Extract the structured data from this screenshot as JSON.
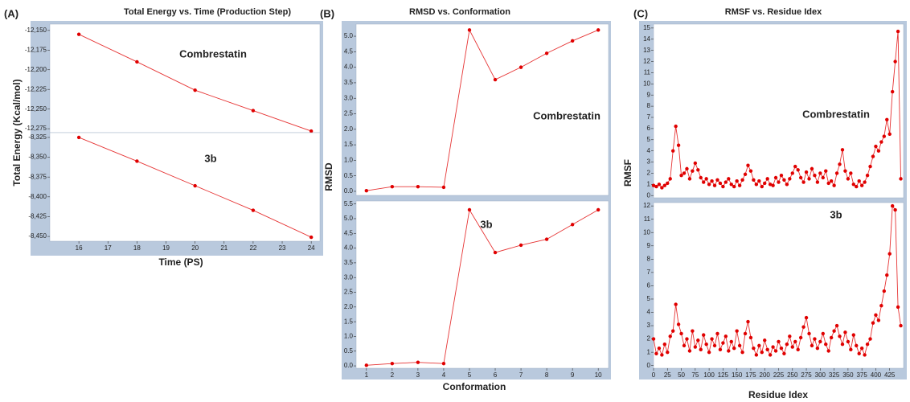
{
  "chart_data": [
    {
      "type": "line",
      "panel": "(A)",
      "title": "Total Energy vs. Time (Production Step)",
      "y_label": "Total Energy (Kcal/mol)",
      "annotation": "Combrestatin",
      "color": "#e00000",
      "x": [
        16,
        18,
        20,
        22,
        24
      ],
      "values": [
        -12155,
        -12190,
        -12226,
        -12252,
        -12278
      ],
      "xlim": [
        15,
        24.3
      ],
      "ylim": [
        -12280,
        -12142
      ],
      "yticks": [
        {
          "value": -12150,
          "label": "-12,150"
        },
        {
          "value": -12175,
          "label": "-12,175"
        },
        {
          "value": -12200,
          "label": "-12,200"
        },
        {
          "value": -12225,
          "label": "-12,225"
        },
        {
          "value": -12250,
          "label": "-12,250"
        },
        {
          "value": -12275,
          "label": "-12,275"
        }
      ]
    },
    {
      "type": "line",
      "x_label": "Time (PS)",
      "annotation": "3b",
      "color": "#e00000",
      "x": [
        16,
        18,
        20,
        22,
        24
      ],
      "values": [
        -8325,
        -8355,
        -8386,
        -8417,
        -8451
      ],
      "xlim": [
        15,
        24.3
      ],
      "ylim": [
        -8456,
        -8319
      ],
      "xticks": [
        16,
        17,
        18,
        19,
        20,
        21,
        22,
        23,
        24
      ],
      "yticks": [
        {
          "value": -8325,
          "label": "-8,325"
        },
        {
          "value": -8350,
          "label": "-8,350"
        },
        {
          "value": -8375,
          "label": "-8,375"
        },
        {
          "value": -8400,
          "label": "-8,400"
        },
        {
          "value": -8425,
          "label": "-8,425"
        },
        {
          "value": -8450,
          "label": "-8,450"
        }
      ]
    },
    {
      "type": "line",
      "panel": "(B)",
      "title": "RMSD vs. Conformation",
      "y_label": "RMSD",
      "annotation": "Combrestatin",
      "color": "#e00000",
      "x": [
        1,
        2,
        3,
        4,
        5,
        6,
        7,
        8,
        9,
        10
      ],
      "values": [
        0.02,
        0.15,
        0.15,
        0.13,
        5.2,
        3.6,
        4.0,
        4.45,
        4.85,
        5.2
      ],
      "xlim": [
        0.6,
        10.4
      ],
      "ylim": [
        -0.13,
        5.39
      ],
      "yticks": [
        {
          "value": 0,
          "label": "0.0"
        },
        {
          "value": 0.5,
          "label": "0.5"
        },
        {
          "value": 1,
          "label": "1.0"
        },
        {
          "value": 1.5,
          "label": "1.5"
        },
        {
          "value": 2,
          "label": "2.0"
        },
        {
          "value": 2.5,
          "label": "2.5"
        },
        {
          "value": 3,
          "label": "3.0"
        },
        {
          "value": 3.5,
          "label": "3.5"
        },
        {
          "value": 4,
          "label": "4.0"
        },
        {
          "value": 4.5,
          "label": "4.5"
        },
        {
          "value": 5,
          "label": "5.0"
        }
      ]
    },
    {
      "type": "line",
      "x_label": "Conformation",
      "annotation": "3b",
      "color": "#e00000",
      "x": [
        1,
        2,
        3,
        4,
        5,
        6,
        7,
        8,
        9,
        10
      ],
      "values": [
        0.02,
        0.08,
        0.12,
        0.08,
        5.3,
        3.85,
        4.1,
        4.3,
        4.8,
        5.3
      ],
      "xlim": [
        0.6,
        10.4
      ],
      "ylim": [
        -0.08,
        5.6
      ],
      "xticks": [
        1,
        2,
        3,
        4,
        5,
        6,
        7,
        8,
        9,
        10
      ],
      "yticks": [
        {
          "value": 0,
          "label": "0.0"
        },
        {
          "value": 0.5,
          "label": "0.5"
        },
        {
          "value": 1,
          "label": "1.0"
        },
        {
          "value": 1.5,
          "label": "1.5"
        },
        {
          "value": 2,
          "label": "2.0"
        },
        {
          "value": 2.5,
          "label": "2.5"
        },
        {
          "value": 3,
          "label": "3.0"
        },
        {
          "value": 3.5,
          "label": "3.5"
        },
        {
          "value": 4,
          "label": "4.0"
        },
        {
          "value": 4.5,
          "label": "4.5"
        },
        {
          "value": 5,
          "label": "5.0"
        },
        {
          "value": 5.5,
          "label": "5.5"
        }
      ]
    },
    {
      "type": "line",
      "panel": "(C)",
      "title": "RMSF vs. Residue Idex",
      "y_label": "RMSF",
      "annotation": "Combrestatin",
      "color": "#e00000",
      "x": [
        0,
        5,
        10,
        15,
        20,
        25,
        30,
        35,
        40,
        45,
        50,
        55,
        60,
        65,
        70,
        75,
        80,
        85,
        90,
        95,
        100,
        105,
        110,
        115,
        120,
        125,
        130,
        135,
        140,
        145,
        150,
        155,
        160,
        165,
        170,
        175,
        180,
        185,
        190,
        195,
        200,
        205,
        210,
        215,
        220,
        225,
        230,
        235,
        240,
        245,
        250,
        255,
        260,
        265,
        270,
        275,
        280,
        285,
        290,
        295,
        300,
        305,
        310,
        315,
        320,
        325,
        330,
        335,
        340,
        345,
        350,
        355,
        360,
        365,
        370,
        375,
        380,
        385,
        390,
        395,
        400,
        405,
        410,
        415,
        420,
        425,
        430,
        435,
        440,
        445
      ],
      "values": [
        0.9,
        0.8,
        1.0,
        0.7,
        0.9,
        1.1,
        1.5,
        4.0,
        6.2,
        4.5,
        1.8,
        2.0,
        2.4,
        1.5,
        2.2,
        2.9,
        2.3,
        1.6,
        1.2,
        1.5,
        1.0,
        1.3,
        0.9,
        1.4,
        1.1,
        0.8,
        1.2,
        1.5,
        1.0,
        0.8,
        1.3,
        0.9,
        1.4,
        1.9,
        2.7,
        2.2,
        1.4,
        1.0,
        1.3,
        0.8,
        1.1,
        1.5,
        1.0,
        0.9,
        1.6,
        1.2,
        1.8,
        1.4,
        1.0,
        1.5,
        2.0,
        2.6,
        2.3,
        1.6,
        1.2,
        2.1,
        1.5,
        2.4,
        1.8,
        1.2,
        2.0,
        1.6,
        2.2,
        1.1,
        1.3,
        0.9,
        2.0,
        2.8,
        4.1,
        2.2,
        1.5,
        2.0,
        1.0,
        0.8,
        1.3,
        0.9,
        1.2,
        1.8,
        2.6,
        3.5,
        4.4,
        4.0,
        4.8,
        5.3,
        6.8,
        5.5,
        9.3,
        12.0,
        14.7,
        1.5
      ],
      "xlim": [
        0,
        450
      ],
      "ylim": [
        -0.2,
        15.35
      ],
      "yticks": [
        0,
        1,
        2,
        3,
        4,
        5,
        6,
        7,
        8,
        9,
        10,
        11,
        12,
        13,
        14,
        15
      ]
    },
    {
      "type": "line",
      "x_label": "Residue Idex",
      "annotation": "3b",
      "color": "#e00000",
      "x": [
        0,
        5,
        10,
        15,
        20,
        25,
        30,
        35,
        40,
        45,
        50,
        55,
        60,
        65,
        70,
        75,
        80,
        85,
        90,
        95,
        100,
        105,
        110,
        115,
        120,
        125,
        130,
        135,
        140,
        145,
        150,
        155,
        160,
        165,
        170,
        175,
        180,
        185,
        190,
        195,
        200,
        205,
        210,
        215,
        220,
        225,
        230,
        235,
        240,
        245,
        250,
        255,
        260,
        265,
        270,
        275,
        280,
        285,
        290,
        295,
        300,
        305,
        310,
        315,
        320,
        325,
        330,
        335,
        340,
        345,
        350,
        355,
        360,
        365,
        370,
        375,
        380,
        385,
        390,
        395,
        400,
        405,
        410,
        415,
        420,
        425,
        430,
        435,
        440,
        445
      ],
      "values": [
        2.0,
        0.9,
        1.3,
        0.8,
        1.6,
        1.0,
        2.2,
        2.6,
        4.6,
        3.1,
        2.4,
        1.5,
        2.0,
        1.1,
        2.6,
        1.4,
        1.9,
        1.2,
        2.3,
        1.6,
        1.0,
        2.0,
        1.5,
        2.4,
        1.2,
        1.7,
        2.2,
        1.1,
        1.8,
        1.3,
        2.6,
        1.5,
        1.0,
        2.4,
        3.3,
        2.1,
        1.3,
        0.8,
        1.5,
        1.0,
        1.9,
        1.2,
        0.8,
        1.4,
        1.1,
        1.8,
        1.3,
        0.9,
        1.6,
        2.2,
        1.4,
        1.8,
        1.2,
        2.1,
        2.9,
        3.6,
        2.4,
        1.5,
        2.0,
        1.3,
        1.8,
        2.4,
        1.6,
        1.1,
        2.1,
        2.6,
        3.0,
        2.2,
        1.6,
        2.5,
        1.8,
        1.2,
        2.3,
        1.5,
        0.9,
        1.3,
        0.8,
        1.6,
        2.0,
        3.2,
        3.8,
        3.4,
        4.5,
        5.6,
        6.8,
        8.4,
        12.0,
        11.7,
        4.4,
        3.0
      ],
      "xlim": [
        0,
        450
      ],
      "ylim": [
        -0.2,
        12.25
      ],
      "yticks": [
        0,
        1,
        2,
        3,
        4,
        5,
        6,
        7,
        8,
        9,
        10,
        11,
        12
      ],
      "xticks": [
        0,
        25,
        50,
        75,
        100,
        125,
        150,
        175,
        200,
        225,
        250,
        275,
        300,
        325,
        350,
        375,
        400,
        425
      ]
    }
  ]
}
